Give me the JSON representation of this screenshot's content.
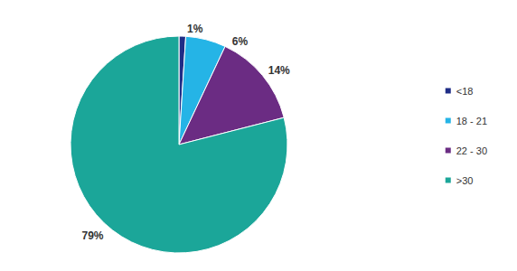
{
  "chart_data": {
    "type": "pie",
    "categories": [
      "<18",
      "18 - 21",
      "22 - 30",
      ">30"
    ],
    "values": [
      1,
      6,
      14,
      79
    ],
    "value_labels": [
      "1%",
      "6%",
      "14%",
      "79%"
    ],
    "colors": [
      "#1f2d86",
      "#25b4e6",
      "#6b2c83",
      "#1ba699"
    ],
    "data_labels": true,
    "legend": "right"
  }
}
